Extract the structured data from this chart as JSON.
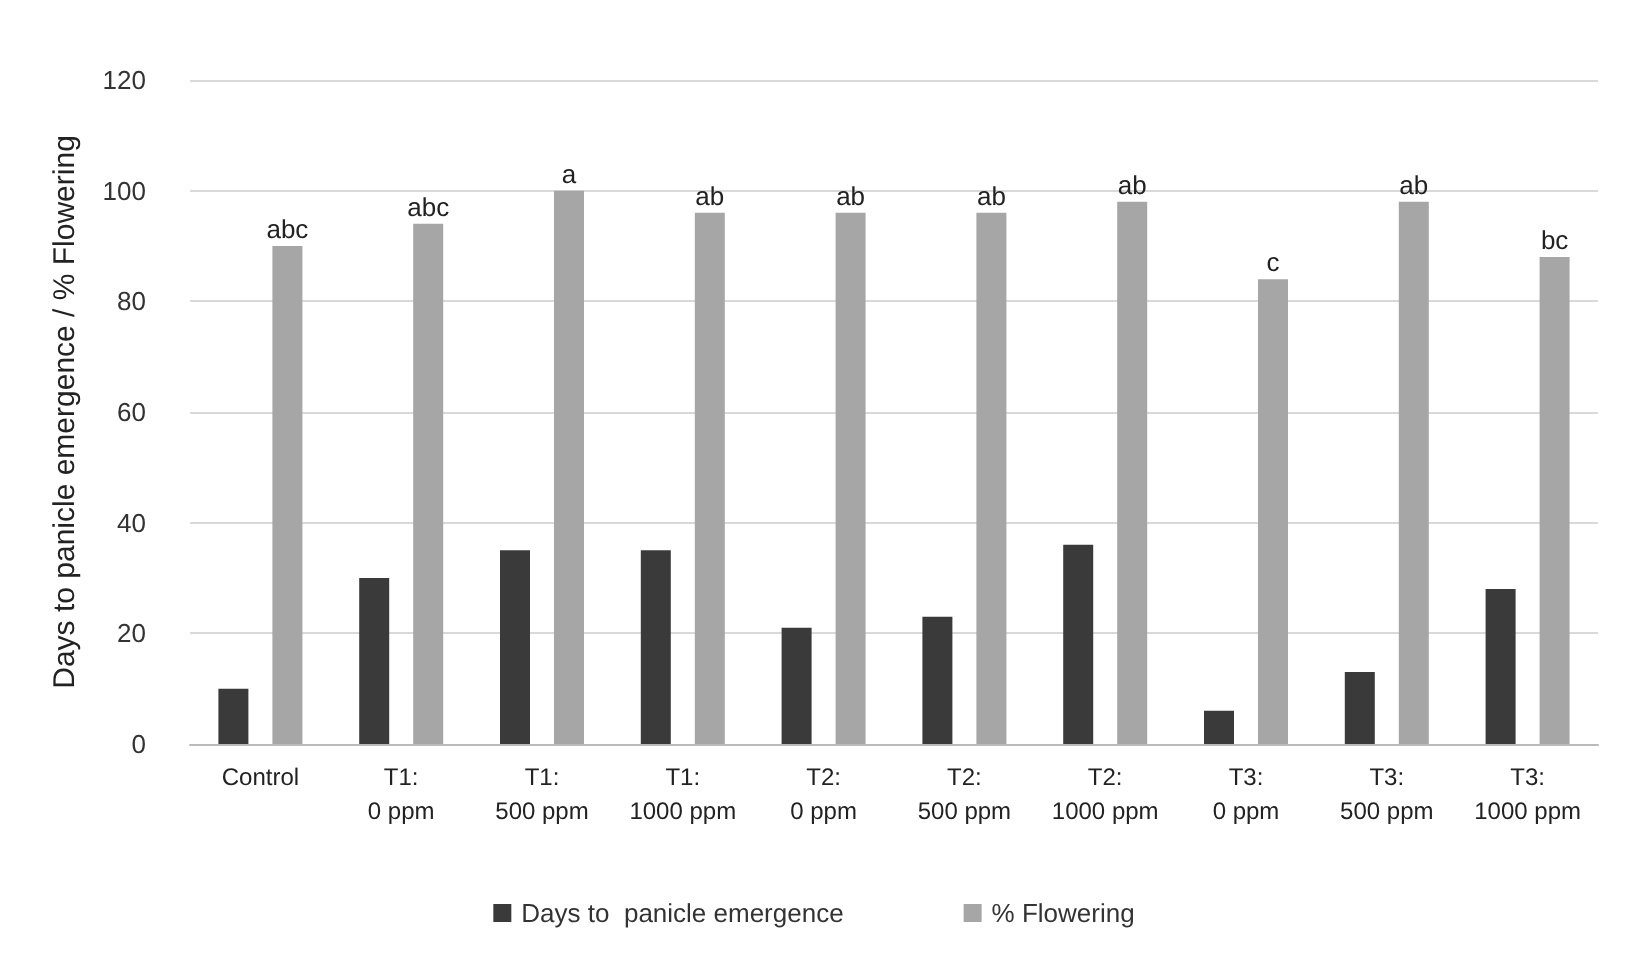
{
  "chart_data": {
    "type": "bar",
    "ylabel": "Days to panicle emergence / % Flowering",
    "categories": [
      "Control",
      "T1: 0 ppm",
      "T1: 500 ppm",
      "T1: 1000 ppm",
      "T2: 0 ppm",
      "T2: 500 ppm",
      "T2: 1000 ppm",
      "T3: 0 ppm",
      "T3: 500 ppm",
      "T3: 1000 ppm"
    ],
    "series": [
      {
        "name": "Days to  panicle emergence",
        "color": "#3a3a3a",
        "values": [
          10,
          30,
          35,
          35,
          21,
          23,
          36,
          6,
          13,
          28
        ]
      },
      {
        "name": "% Flowering",
        "color": "#a6a6a6",
        "values": [
          90,
          94,
          100,
          96,
          96,
          96,
          98,
          84,
          98,
          88
        ],
        "value_labels": [
          "abc",
          "abc",
          "a",
          "ab",
          "ab",
          "ab",
          "ab",
          "c",
          "ab",
          "bc"
        ]
      }
    ],
    "ylim": [
      0,
      120
    ],
    "yticks": [
      0,
      20,
      40,
      60,
      80,
      100,
      120
    ],
    "grid": "y",
    "legend": "bottom"
  }
}
